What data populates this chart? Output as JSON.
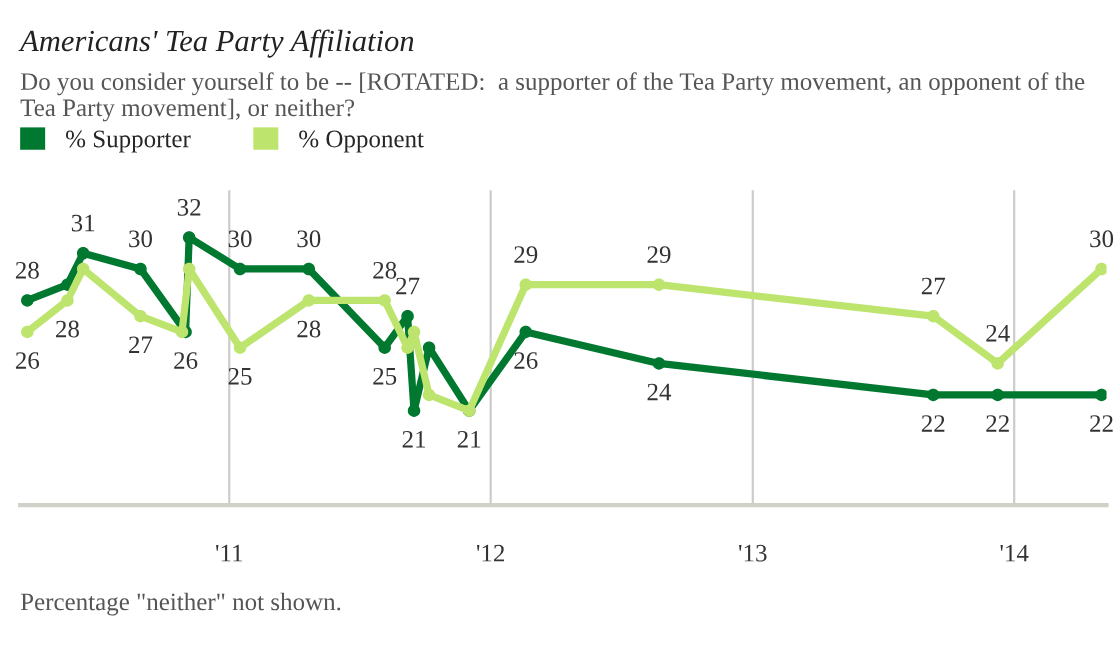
{
  "chart_data": {
    "type": "line",
    "title": "Americans' Tea Party Affiliation",
    "subtitle": "Do you consider yourself to be -- [ROTATED:  a supporter of the Tea Party movement, an opponent of the Tea Party movement], or neither?",
    "annotations": [
      "Percentage \"neither\" not shown."
    ],
    "series": [
      {
        "name": "% Supporter",
        "color": "#00782f",
        "x": [
          "2010-03-25",
          "2010-05-20",
          "2010-06-11",
          "2010-08-30",
          "2010-11-01",
          "2010-11-06",
          "2011-01-16",
          "2011-04-22",
          "2011-08-06",
          "2011-09-07",
          "2011-09-16",
          "2011-10-07",
          "2011-12-02",
          "2012-02-19",
          "2012-08-23",
          "2013-09-10",
          "2013-12-09",
          "2014-05-03"
        ],
        "values": [
          28,
          29,
          31,
          30,
          26,
          32,
          30,
          30,
          25,
          27,
          21,
          25,
          21,
          26,
          24,
          22,
          22,
          22
        ],
        "value_labels": [
          "28",
          null,
          "31",
          "30",
          "26",
          "32",
          "30",
          "30",
          "25",
          "27",
          "21",
          null,
          "21",
          "26",
          "24",
          "22",
          "22",
          "22"
        ]
      },
      {
        "name": "% Opponent",
        "color": "#bde46d",
        "x": [
          "2010-03-25",
          "2010-05-20",
          "2010-06-11",
          "2010-08-30",
          "2010-10-27",
          "2010-11-06",
          "2011-01-16",
          "2011-04-22",
          "2011-08-06",
          "2011-09-07",
          "2011-09-16",
          "2011-10-07",
          "2011-12-02",
          "2012-02-19",
          "2012-08-23",
          "2013-09-10",
          "2013-12-09",
          "2014-05-03"
        ],
        "values": [
          26,
          28,
          30,
          27,
          26,
          30,
          25,
          28,
          28,
          25,
          26,
          22,
          21,
          29,
          29,
          27,
          24,
          30
        ],
        "value_labels": [
          "26",
          "28",
          null,
          "27",
          null,
          null,
          "25",
          "28",
          "28",
          null,
          null,
          null,
          null,
          "29",
          "29",
          "27",
          "24",
          "30"
        ]
      }
    ],
    "xlim": [
      "2010-03-15",
      "2014-05-10"
    ],
    "xticks": [
      {
        "value": "2011-01-01",
        "label": "'11"
      },
      {
        "value": "2012-01-01",
        "label": "'12"
      },
      {
        "value": "2013-01-01",
        "label": "'13"
      },
      {
        "value": "2014-01-01",
        "label": "'14"
      }
    ],
    "ylim": [
      15,
      35
    ],
    "tick_labels": "x",
    "grid": "x",
    "legend": "top left",
    "marker": "circle",
    "line_style": "solid"
  }
}
